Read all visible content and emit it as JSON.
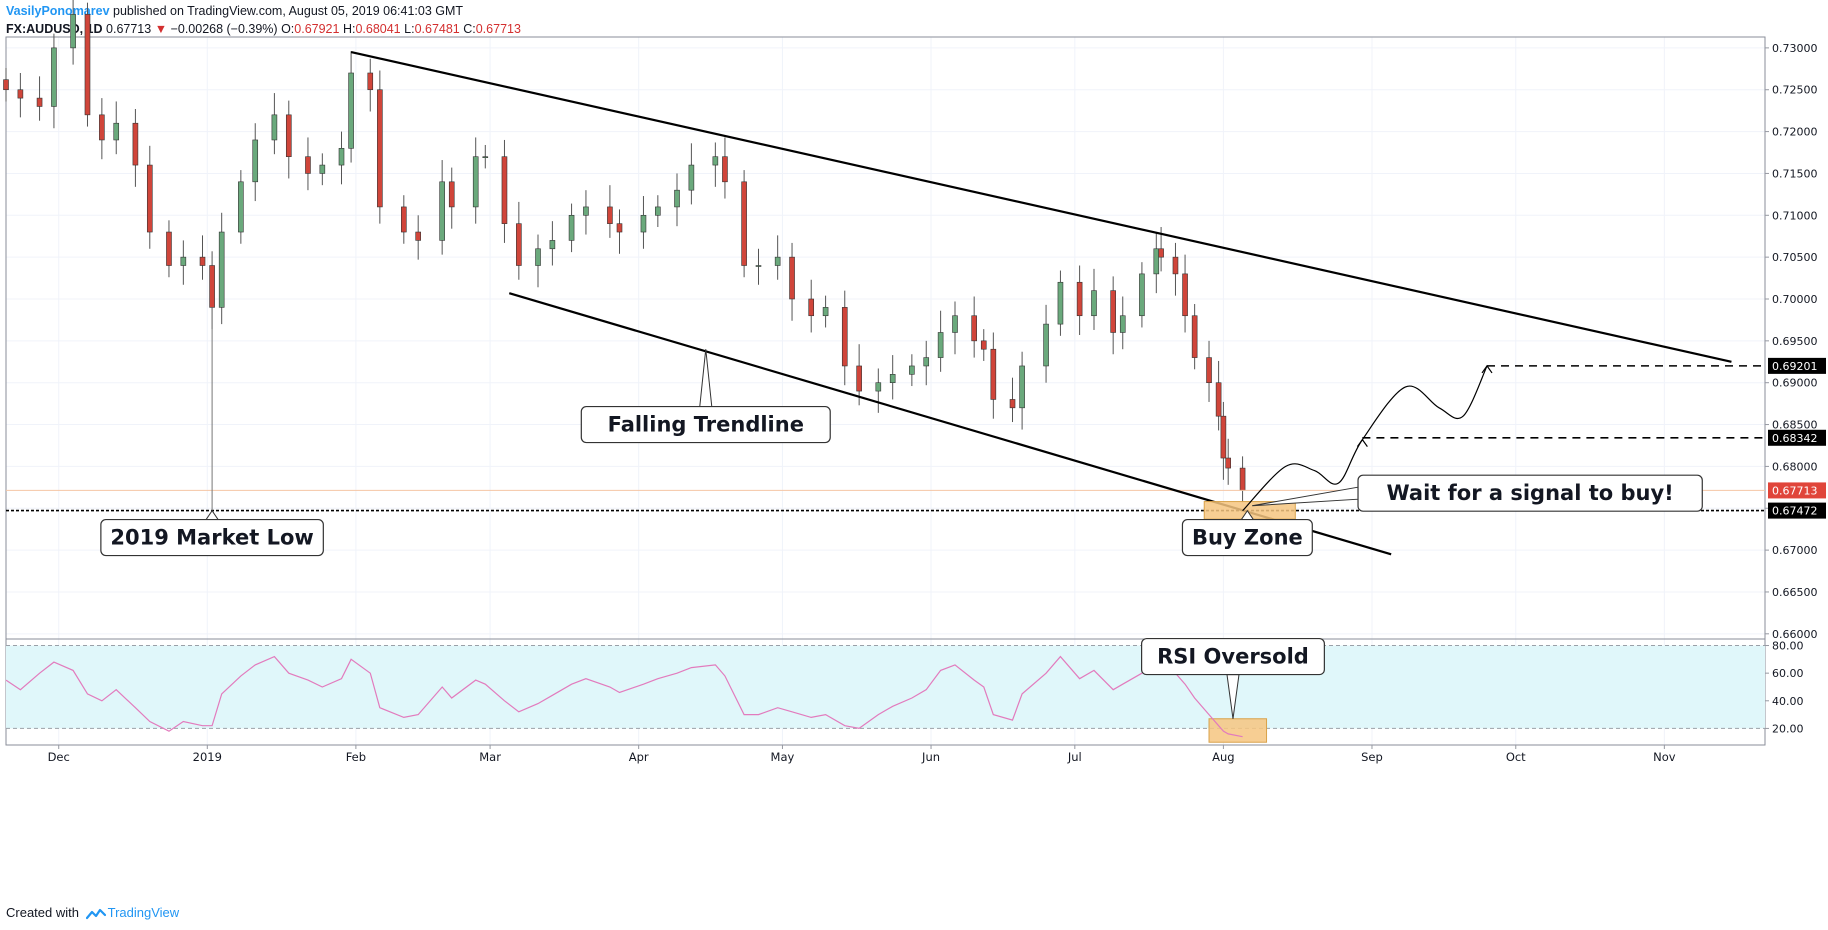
{
  "header": {
    "author": "VasilyPonomarev",
    "published": "published on TradingView.com, August 05, 2019 06:41:03 GMT",
    "symbol": "FX:AUDUSD, 1D",
    "last": "0.67713",
    "change": "−0.00268 (−0.39%)",
    "o_label": "O:",
    "o_value": "0.67921",
    "h_label": "H:",
    "h_value": "0.68041",
    "l_label": "L:",
    "l_value": "0.67481",
    "c_label": "C:",
    "c_value": "0.67713"
  },
  "footer": {
    "created_with": "Created with",
    "brand": "TradingView"
  },
  "colors": {
    "up": "#6aa97c",
    "down": "#d0453a",
    "rsi_line": "#e27bbd",
    "rsi_band": "#e0f7fa",
    "buy_zone": "#f6c680",
    "last_price": "#e0453a"
  },
  "chart_data": [
    {
      "type": "candlestick",
      "symbol": "FX:AUDUSD",
      "timeframe": "1D",
      "y_ticks": [
        "0.73000",
        "0.72500",
        "0.72000",
        "0.71500",
        "0.71000",
        "0.70500",
        "0.70000",
        "0.69500",
        "0.69000",
        "0.68500",
        "0.68000",
        "0.67500",
        "0.67000",
        "0.66500",
        "0.66000"
      ],
      "ylim": [
        0.6595,
        0.7313
      ],
      "x_ticks": [
        "Dec",
        "2019",
        "Feb",
        "Mar",
        "Apr",
        "May",
        "Jun",
        "Jul",
        "Aug",
        "Sep",
        "Oct",
        "Nov"
      ],
      "x_tick_dates": [
        "2018-12-01",
        "2019-01-01",
        "2019-02-01",
        "2019-03-01",
        "2019-04-01",
        "2019-05-01",
        "2019-06-01",
        "2019-07-01",
        "2019-08-01",
        "2019-09-01",
        "2019-10-01",
        "2019-11-01"
      ],
      "x_range": [
        "2018-11-20",
        "2019-11-22"
      ],
      "closes": [
        [
          "2018-11-20",
          0.725
        ],
        [
          "2018-11-23",
          0.724
        ],
        [
          "2018-11-27",
          0.723
        ],
        [
          "2018-11-30",
          0.73
        ],
        [
          "2018-12-04",
          0.734
        ],
        [
          "2018-12-07",
          0.722
        ],
        [
          "2018-12-10",
          0.719
        ],
        [
          "2018-12-13",
          0.721
        ],
        [
          "2018-12-17",
          0.716
        ],
        [
          "2018-12-20",
          0.708
        ],
        [
          "2018-12-24",
          0.704
        ],
        [
          "2018-12-27",
          0.705
        ],
        [
          "2018-12-31",
          0.704
        ],
        [
          "2019-01-02",
          0.699
        ],
        [
          "2019-01-04",
          0.708
        ],
        [
          "2019-01-08",
          0.714
        ],
        [
          "2019-01-11",
          0.719
        ],
        [
          "2019-01-15",
          0.722
        ],
        [
          "2019-01-18",
          0.717
        ],
        [
          "2019-01-22",
          0.715
        ],
        [
          "2019-01-25",
          0.716
        ],
        [
          "2019-01-29",
          0.718
        ],
        [
          "2019-01-31",
          0.727
        ],
        [
          "2019-02-04",
          0.725
        ],
        [
          "2019-02-06",
          0.711
        ],
        [
          "2019-02-11",
          0.708
        ],
        [
          "2019-02-14",
          0.707
        ],
        [
          "2019-02-19",
          0.714
        ],
        [
          "2019-02-21",
          0.711
        ],
        [
          "2019-02-26",
          0.717
        ],
        [
          "2019-02-28",
          0.717
        ],
        [
          "2019-03-04",
          0.709
        ],
        [
          "2019-03-07",
          0.704
        ],
        [
          "2019-03-11",
          0.706
        ],
        [
          "2019-03-14",
          0.707
        ],
        [
          "2019-03-18",
          0.71
        ],
        [
          "2019-03-21",
          0.711
        ],
        [
          "2019-03-26",
          0.709
        ],
        [
          "2019-03-28",
          0.708
        ],
        [
          "2019-04-02",
          0.71
        ],
        [
          "2019-04-05",
          0.711
        ],
        [
          "2019-04-09",
          0.713
        ],
        [
          "2019-04-12",
          0.716
        ],
        [
          "2019-04-17",
          0.717
        ],
        [
          "2019-04-19",
          0.714
        ],
        [
          "2019-04-23",
          0.704
        ],
        [
          "2019-04-26",
          0.704
        ],
        [
          "2019-04-30",
          0.705
        ],
        [
          "2019-05-03",
          0.7
        ],
        [
          "2019-05-07",
          0.698
        ],
        [
          "2019-05-10",
          0.699
        ],
        [
          "2019-05-14",
          0.692
        ],
        [
          "2019-05-17",
          0.689
        ],
        [
          "2019-05-21",
          0.69
        ],
        [
          "2019-05-24",
          0.691
        ],
        [
          "2019-05-28",
          0.692
        ],
        [
          "2019-05-31",
          0.693
        ],
        [
          "2019-06-03",
          0.696
        ],
        [
          "2019-06-06",
          0.698
        ],
        [
          "2019-06-10",
          0.695
        ],
        [
          "2019-06-12",
          0.694
        ],
        [
          "2019-06-14",
          0.688
        ],
        [
          "2019-06-18",
          0.687
        ],
        [
          "2019-06-20",
          0.692
        ],
        [
          "2019-06-25",
          0.697
        ],
        [
          "2019-06-28",
          0.702
        ],
        [
          "2019-07-02",
          0.698
        ],
        [
          "2019-07-05",
          0.701
        ],
        [
          "2019-07-09",
          0.696
        ],
        [
          "2019-07-11",
          0.698
        ],
        [
          "2019-07-15",
          0.703
        ],
        [
          "2019-07-18",
          0.706
        ],
        [
          "2019-07-19",
          0.705
        ],
        [
          "2019-07-22",
          0.703
        ],
        [
          "2019-07-24",
          0.698
        ],
        [
          "2019-07-26",
          0.693
        ],
        [
          "2019-07-29",
          0.69
        ],
        [
          "2019-07-31",
          0.686
        ],
        [
          "2019-08-01",
          0.681
        ],
        [
          "2019-08-02",
          0.6798
        ],
        [
          "2019-08-05",
          0.67713
        ]
      ],
      "trendlines": [
        {
          "from": [
            "2019-01-31",
            0.7295
          ],
          "to": [
            "2019-11-15",
            0.6925
          ]
        },
        {
          "from": [
            "2019-03-05",
            0.7007
          ],
          "to": [
            "2019-09-05",
            0.6695
          ]
        }
      ],
      "horizontal_levels": [
        {
          "price": 0.67472,
          "label": "0.67472"
        }
      ],
      "dashed_targets": [
        {
          "price": 0.68342,
          "label": "0.68342",
          "from": "2019-08-30"
        },
        {
          "price": 0.69201,
          "label": "0.69201",
          "from": "2019-09-25"
        }
      ],
      "last_price": {
        "value": 0.67713,
        "label": "0.67713"
      },
      "projection_path": [
        [
          "2019-08-05",
          0.6747
        ],
        [
          "2019-08-14",
          0.68
        ],
        [
          "2019-08-20",
          0.6795
        ],
        [
          "2019-08-25",
          0.678
        ],
        [
          "2019-08-30",
          0.6832
        ],
        [
          "2019-09-08",
          0.6895
        ],
        [
          "2019-09-15",
          0.687
        ],
        [
          "2019-09-20",
          0.686
        ],
        [
          "2019-09-25",
          0.692
        ]
      ],
      "buy_zone": {
        "x0": "2019-07-28",
        "x1": "2019-08-16",
        "y0": 0.6737,
        "y1": 0.6758
      },
      "annotations": [
        {
          "text": "Falling Trendline",
          "anchor": [
            "2019-04-15",
            0.694
          ],
          "box": [
            "2019-04-15",
            0.685
          ]
        },
        {
          "text": "2019 Market Low",
          "anchor": [
            "2019-01-02",
            0.6747
          ],
          "box": [
            "2019-01-02",
            0.6715
          ]
        },
        {
          "text": "Buy Zone",
          "anchor": [
            "2019-08-06",
            0.6747
          ],
          "box": [
            "2019-08-06",
            0.6715
          ]
        },
        {
          "text": "Wait for a signal to buy!",
          "anchor": [
            "2019-08-07",
            0.6753
          ],
          "box": [
            "2019-10-04",
            0.6768
          ]
        }
      ]
    },
    {
      "type": "line",
      "name": "RSI",
      "y_ticks": [
        "80.00",
        "60.00",
        "40.00",
        "20.00"
      ],
      "ylim": [
        8,
        84
      ],
      "band": [
        20,
        80
      ],
      "rsi": [
        [
          "2018-11-20",
          55
        ],
        [
          "2018-11-23",
          48
        ],
        [
          "2018-11-27",
          60
        ],
        [
          "2018-11-30",
          68
        ],
        [
          "2018-12-04",
          62
        ],
        [
          "2018-12-07",
          45
        ],
        [
          "2018-12-10",
          40
        ],
        [
          "2018-12-13",
          48
        ],
        [
          "2018-12-17",
          35
        ],
        [
          "2018-12-20",
          25
        ],
        [
          "2018-12-24",
          18
        ],
        [
          "2018-12-27",
          25
        ],
        [
          "2018-12-31",
          22
        ],
        [
          "2019-01-02",
          22
        ],
        [
          "2019-01-04",
          45
        ],
        [
          "2019-01-08",
          58
        ],
        [
          "2019-01-11",
          66
        ],
        [
          "2019-01-15",
          72
        ],
        [
          "2019-01-18",
          60
        ],
        [
          "2019-01-22",
          55
        ],
        [
          "2019-01-25",
          50
        ],
        [
          "2019-01-29",
          56
        ],
        [
          "2019-01-31",
          70
        ],
        [
          "2019-02-04",
          60
        ],
        [
          "2019-02-06",
          35
        ],
        [
          "2019-02-11",
          28
        ],
        [
          "2019-02-14",
          30
        ],
        [
          "2019-02-19",
          50
        ],
        [
          "2019-02-21",
          42
        ],
        [
          "2019-02-26",
          55
        ],
        [
          "2019-02-28",
          52
        ],
        [
          "2019-03-04",
          40
        ],
        [
          "2019-03-07",
          32
        ],
        [
          "2019-03-11",
          38
        ],
        [
          "2019-03-14",
          44
        ],
        [
          "2019-03-18",
          52
        ],
        [
          "2019-03-21",
          56
        ],
        [
          "2019-03-26",
          50
        ],
        [
          "2019-03-28",
          46
        ],
        [
          "2019-04-02",
          52
        ],
        [
          "2019-04-05",
          56
        ],
        [
          "2019-04-09",
          60
        ],
        [
          "2019-04-12",
          64
        ],
        [
          "2019-04-17",
          66
        ],
        [
          "2019-04-19",
          58
        ],
        [
          "2019-04-23",
          30
        ],
        [
          "2019-04-26",
          30
        ],
        [
          "2019-04-30",
          35
        ],
        [
          "2019-05-03",
          32
        ],
        [
          "2019-05-07",
          28
        ],
        [
          "2019-05-10",
          30
        ],
        [
          "2019-05-14",
          22
        ],
        [
          "2019-05-17",
          20
        ],
        [
          "2019-05-21",
          30
        ],
        [
          "2019-05-24",
          36
        ],
        [
          "2019-05-28",
          42
        ],
        [
          "2019-05-31",
          48
        ],
        [
          "2019-06-03",
          62
        ],
        [
          "2019-06-06",
          66
        ],
        [
          "2019-06-10",
          55
        ],
        [
          "2019-06-12",
          50
        ],
        [
          "2019-06-14",
          30
        ],
        [
          "2019-06-18",
          26
        ],
        [
          "2019-06-20",
          45
        ],
        [
          "2019-06-25",
          60
        ],
        [
          "2019-06-28",
          72
        ],
        [
          "2019-07-02",
          56
        ],
        [
          "2019-07-05",
          62
        ],
        [
          "2019-07-09",
          48
        ],
        [
          "2019-07-11",
          52
        ],
        [
          "2019-07-15",
          60
        ],
        [
          "2019-07-18",
          68
        ],
        [
          "2019-07-19",
          66
        ],
        [
          "2019-07-22",
          60
        ],
        [
          "2019-07-24",
          52
        ],
        [
          "2019-07-26",
          42
        ],
        [
          "2019-07-29",
          30
        ],
        [
          "2019-07-31",
          22
        ],
        [
          "2019-08-01",
          18
        ],
        [
          "2019-08-02",
          16
        ],
        [
          "2019-08-05",
          14
        ]
      ],
      "rsi_box": {
        "x0": "2019-07-29",
        "x1": "2019-08-10",
        "y0": 10,
        "y1": 27
      },
      "annotations": [
        {
          "text": "RSI Oversold",
          "anchor": [
            "2019-08-03",
            27
          ],
          "box": [
            "2019-08-03",
            72
          ]
        }
      ]
    }
  ]
}
